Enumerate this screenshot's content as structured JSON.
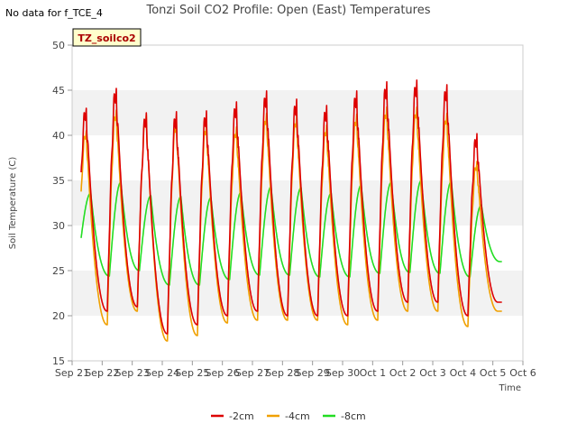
{
  "no_data_note": "No data for f_TCE_4",
  "site_badge": "TZ_soilco2",
  "chart_data": {
    "type": "line",
    "title": "Tonzi Soil CO2 Profile: Open (East) Temperatures",
    "xlabel": "Time",
    "ylabel": "Soil Temperature (C)",
    "ylim": [
      15,
      50
    ],
    "xlim": [
      0,
      15
    ],
    "yticks": [
      15,
      20,
      25,
      30,
      35,
      40,
      45,
      50
    ],
    "xtick_labels": [
      "Sep 21",
      "Sep 22",
      "Sep 23",
      "Sep 24",
      "Sep 25",
      "Sep 26",
      "Sep 27",
      "Sep 28",
      "Sep 29",
      "Sep 30",
      "Oct 1",
      "Oct 2",
      "Oct 3",
      "Oct 4",
      "Oct 5",
      "Oct 6"
    ],
    "grid": "horizontal bands",
    "legend_position": "bottom-center",
    "x_data_range": [
      0.3,
      14.3
    ],
    "series": [
      {
        "name": "-2cm",
        "color": "#dd0000",
        "days": [
          {
            "min": 22.5,
            "max": 43.0
          },
          {
            "min": 20.5,
            "max": 45.2
          },
          {
            "min": 21.0,
            "max": 42.3
          },
          {
            "min": 18.0,
            "max": 42.4
          },
          {
            "min": 19.0,
            "max": 42.5
          },
          {
            "min": 20.0,
            "max": 43.5
          },
          {
            "min": 20.5,
            "max": 44.7
          },
          {
            "min": 20.0,
            "max": 43.8
          },
          {
            "min": 20.0,
            "max": 43.1
          },
          {
            "min": 20.0,
            "max": 44.7
          },
          {
            "min": 20.5,
            "max": 45.7
          },
          {
            "min": 21.5,
            "max": 45.9
          },
          {
            "min": 21.5,
            "max": 45.4
          },
          {
            "min": 20.0,
            "max": 40.0
          },
          {
            "min": 21.5,
            "max": 21.5
          }
        ]
      },
      {
        "name": "-4cm",
        "color": "#f0a000",
        "days": [
          {
            "min": 21.5,
            "max": 40.5
          },
          {
            "min": 19.0,
            "max": 42.8
          },
          {
            "min": 20.5,
            "max": 42.2
          },
          {
            "min": 17.2,
            "max": 41.5
          },
          {
            "min": 17.8,
            "max": 41.2
          },
          {
            "min": 19.2,
            "max": 40.8
          },
          {
            "min": 19.5,
            "max": 42.3
          },
          {
            "min": 19.5,
            "max": 42.0
          },
          {
            "min": 19.5,
            "max": 41.0
          },
          {
            "min": 19.0,
            "max": 42.2
          },
          {
            "min": 19.5,
            "max": 43.0
          },
          {
            "min": 20.5,
            "max": 43.0
          },
          {
            "min": 20.5,
            "max": 42.3
          },
          {
            "min": 18.8,
            "max": 37.0
          },
          {
            "min": 20.5,
            "max": 20.5
          }
        ]
      },
      {
        "name": "-8cm",
        "color": "#22dd22",
        "days": [
          {
            "min": 27.0,
            "max": 33.6
          },
          {
            "min": 24.4,
            "max": 34.8
          },
          {
            "min": 25.0,
            "max": 33.3
          },
          {
            "min": 23.4,
            "max": 33.2
          },
          {
            "min": 23.4,
            "max": 33.1
          },
          {
            "min": 24.0,
            "max": 33.7
          },
          {
            "min": 24.5,
            "max": 34.3
          },
          {
            "min": 24.5,
            "max": 34.2
          },
          {
            "min": 24.3,
            "max": 33.6
          },
          {
            "min": 24.3,
            "max": 34.5
          },
          {
            "min": 24.7,
            "max": 34.8
          },
          {
            "min": 24.8,
            "max": 35.0
          },
          {
            "min": 24.7,
            "max": 34.9
          },
          {
            "min": 24.3,
            "max": 32.3
          },
          {
            "min": 26.0,
            "max": 26.0
          }
        ]
      }
    ]
  }
}
